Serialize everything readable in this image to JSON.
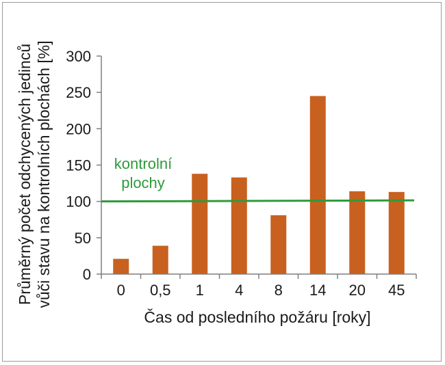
{
  "chart_data": {
    "type": "bar",
    "categories": [
      "0",
      "0,5",
      "1",
      "4",
      "8",
      "14",
      "20",
      "45"
    ],
    "values": [
      21,
      39,
      138,
      133,
      81,
      245,
      114,
      113
    ],
    "xlabel": "Čas od posledního požáru [roky]",
    "ylabel_line1": "Průměrný počet odchycených jedinců",
    "ylabel_line2": "vůči stavu na kontrolních plochách [%]",
    "ylim": [
      0,
      300
    ],
    "yticks": [
      0,
      50,
      100,
      150,
      200,
      250,
      300
    ],
    "grid": false,
    "reference_line": {
      "value": 100,
      "label_line1": "kontrolní",
      "label_line2": "plochy",
      "color": "#2e9a3a"
    },
    "bar_color": "#c8611f",
    "axis_color": "#7f7f7f"
  }
}
